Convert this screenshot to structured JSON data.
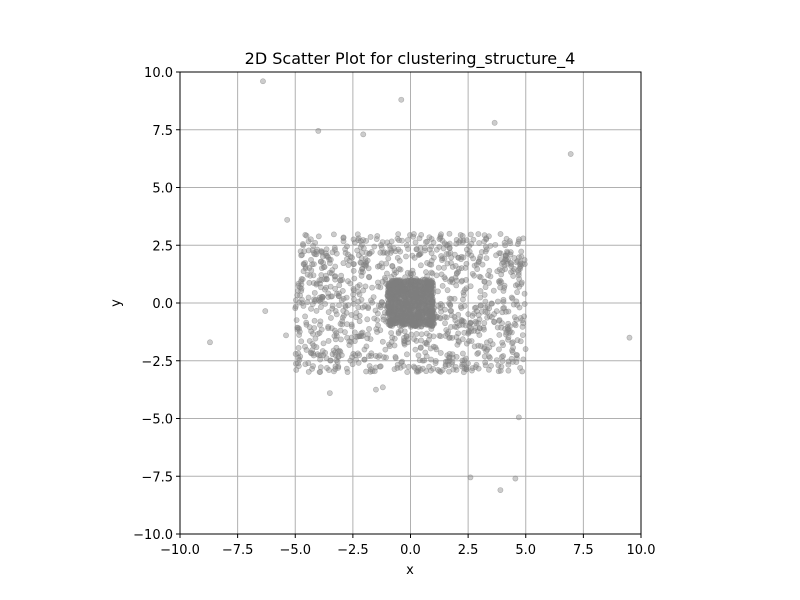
{
  "chart_data": {
    "type": "scatter",
    "title": "2D Scatter Plot for clustering_structure_4",
    "xlabel": "x",
    "ylabel": "y",
    "xlim": [
      -10,
      10
    ],
    "ylim": [
      -10,
      10
    ],
    "xticks": [
      -10,
      -7.5,
      -5,
      -2.5,
      0,
      2.5,
      5,
      7.5,
      10
    ],
    "yticks": [
      -10,
      -7.5,
      -5,
      -2.5,
      0,
      2.5,
      5,
      7.5,
      10
    ],
    "xtick_labels": [
      "−10.0",
      "−7.5",
      "−5.0",
      "−2.5",
      "0.0",
      "2.5",
      "5.0",
      "7.5",
      "10.0"
    ],
    "ytick_labels": [
      "−10.0",
      "−7.5",
      "−5.0",
      "−2.5",
      "0.0",
      "2.5",
      "5.0",
      "7.5",
      "10.0"
    ],
    "grid": true,
    "legend": "none",
    "marker_color": "#808080",
    "marker_opacity": 0.4,
    "series": [
      {
        "points_outliers": [
          [
            -6.4,
            9.6
          ],
          [
            -0.4,
            8.8
          ],
          [
            -4.0,
            7.45
          ],
          [
            -2.05,
            7.3
          ],
          [
            3.65,
            7.8
          ],
          [
            6.95,
            6.45
          ],
          [
            -5.35,
            3.6
          ],
          [
            -6.3,
            -0.35
          ],
          [
            -5.4,
            -1.4
          ],
          [
            -8.7,
            -1.7
          ],
          [
            9.5,
            -1.5
          ],
          [
            -3.5,
            -3.9
          ],
          [
            -1.5,
            -3.75
          ],
          [
            -1.2,
            -3.65
          ],
          [
            4.7,
            -4.95
          ],
          [
            2.6,
            -7.55
          ],
          [
            4.55,
            -7.6
          ],
          [
            3.9,
            -8.1
          ]
        ],
        "uniform_cluster": {
          "x_range": [
            -5,
            5
          ],
          "y_range": [
            -3,
            3
          ],
          "count": 1100
        },
        "dense_cluster": {
          "x_range": [
            -1,
            1
          ],
          "y_range": [
            -1,
            1
          ],
          "count": 900
        }
      }
    ]
  }
}
